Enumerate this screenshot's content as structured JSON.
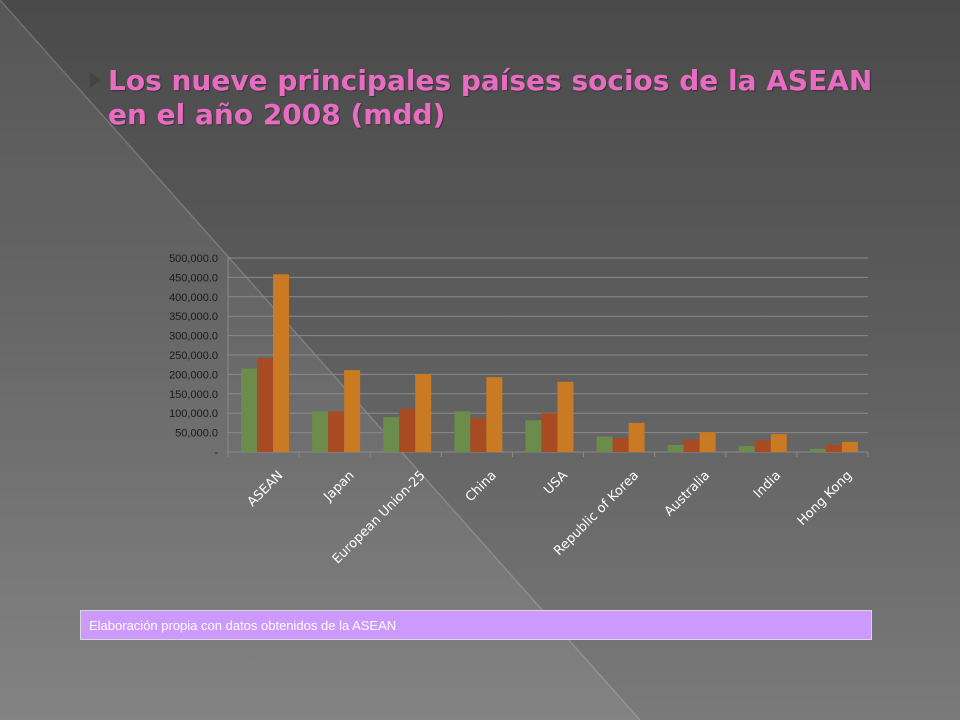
{
  "slide": {
    "title": "Los nueve principales países socios de la ASEAN en el año 2008 (mdd)",
    "source": "Elaboración propia con datos obtenidos de la ASEAN"
  },
  "colors": {
    "title": "#e86cc2",
    "source_box": "#cc99ff",
    "series": [
      "#6b8c4a",
      "#a84a22",
      "#c97a22"
    ]
  },
  "chart_data": {
    "type": "bar",
    "title": "",
    "xlabel": "",
    "ylabel": "",
    "categories": [
      "ASEAN",
      "Japan",
      "European Union-25",
      "China",
      "USA",
      "Republic of Korea",
      "Australia",
      "India",
      "Hong Kong"
    ],
    "series": [
      {
        "values": [
          215000,
          105000,
          90000,
          105000,
          82000,
          40000,
          18000,
          15000,
          8000
        ]
      },
      {
        "values": [
          242000,
          104000,
          112000,
          87000,
          100000,
          36000,
          32000,
          30000,
          18000
        ]
      },
      {
        "values": [
          458000,
          211000,
          201000,
          193000,
          181000,
          75000,
          51000,
          46000,
          26000
        ]
      }
    ],
    "y_ticks": [
      "-",
      "50,000.0",
      "100,000.0",
      "150,000.0",
      "200,000.0",
      "250,000.0",
      "300,000.0",
      "350,000.0",
      "400,000.0",
      "450,000.0",
      "500,000.0"
    ],
    "ylim": [
      0,
      500000
    ],
    "grid": true,
    "legend": "none"
  }
}
